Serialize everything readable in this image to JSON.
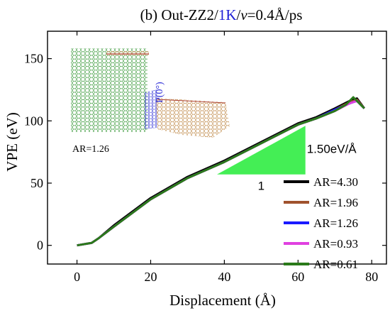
{
  "chart_data": {
    "type": "line",
    "title_segments": [
      {
        "text": "(b) Out-ZZ2/",
        "color": "#000000",
        "italic": false
      },
      {
        "text": "1K",
        "color": "#1f1fd6",
        "italic": false
      },
      {
        "text": "/",
        "color": "#000000",
        "italic": false
      },
      {
        "text": "v",
        "color": "#000000",
        "italic": true
      },
      {
        "text": "=0.4Å/ps",
        "color": "#000000",
        "italic": false
      }
    ],
    "xlabel": "Displacement (Å)",
    "ylabel": "VPE (eV)",
    "xlim": [
      -8,
      84
    ],
    "ylim": [
      -15,
      172
    ],
    "xticks": [
      0,
      20,
      40,
      60,
      80
    ],
    "yticks": [
      0,
      50,
      100,
      150
    ],
    "grid": false,
    "legend_position": "bottom-right",
    "series": [
      {
        "name": "AR=4.30",
        "color": "#000000",
        "x": [
          0,
          4,
          6,
          10,
          20,
          30,
          40,
          50,
          60,
          65,
          70,
          74,
          76,
          78
        ],
        "y": [
          0,
          2,
          6,
          16,
          38,
          55,
          68,
          83,
          98,
          103,
          110,
          116,
          118,
          110
        ]
      },
      {
        "name": "AR=1.96",
        "color": "#a0522d",
        "x": [
          0,
          4,
          6,
          10,
          20,
          30,
          40,
          50,
          60,
          65,
          70,
          74,
          76,
          78
        ],
        "y": [
          0,
          2,
          6,
          15,
          37,
          54,
          67,
          82,
          97,
          102,
          109,
          115,
          117,
          110
        ]
      },
      {
        "name": "AR=1.26",
        "color": "#1a1aff",
        "x": [
          0,
          4,
          6,
          10,
          20,
          30,
          40,
          50,
          60,
          65,
          70,
          74,
          76,
          78
        ],
        "y": [
          0,
          2,
          6,
          15,
          37,
          54,
          67,
          82,
          97,
          102,
          109,
          114,
          116,
          110
        ]
      },
      {
        "name": "AR=0.93",
        "color": "#e040e0",
        "x": [
          0,
          4,
          6,
          10,
          20,
          30,
          40,
          50,
          60,
          65,
          70,
          74,
          76,
          78
        ],
        "y": [
          0,
          2,
          6,
          15,
          37,
          54,
          67,
          82,
          97,
          102,
          108,
          114,
          116,
          110
        ]
      },
      {
        "name": "AR=0.61",
        "color": "#2a7a1a",
        "x": [
          0,
          4,
          6,
          10,
          20,
          30,
          40,
          50,
          60,
          65,
          70,
          73,
          75,
          78
        ],
        "y": [
          0,
          2,
          6,
          15,
          37,
          54,
          67,
          82,
          97,
          102,
          108,
          113,
          119,
          110
        ]
      }
    ],
    "slope_triangle": {
      "x": [
        38,
        62
      ],
      "y": [
        57,
        96
      ],
      "color": "#44ee55",
      "slope_label": "1.50eV/Å",
      "run_label": "1"
    },
    "inset": {
      "ar_label": "AR=1.26",
      "angle_label": "P(0°)",
      "angle_color": "#2a2ad6"
    }
  }
}
